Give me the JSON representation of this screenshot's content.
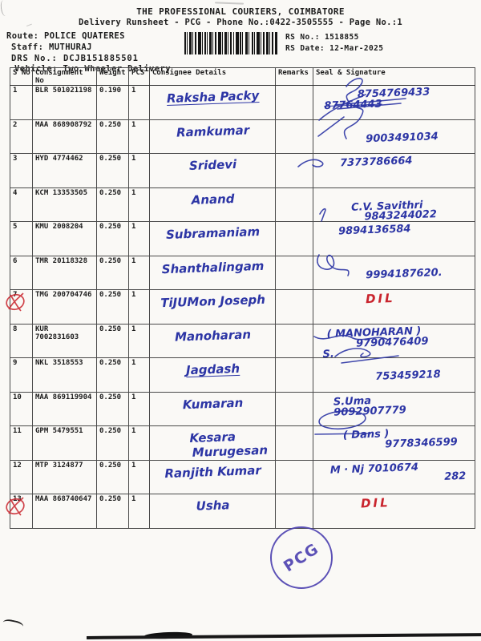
{
  "header": {
    "title": "THE PROFESSIONAL COURIERS, COIMBATORE",
    "subtitle": "Delivery Runsheet - PCG - Phone No.:0422-3505555 - Page No.:1",
    "route": "Route: POLICE QUATERES",
    "staff": "Staff: MUTHURAJ",
    "drs_no": "DRS No.: DCJB151885501",
    "vehicle": "Vehicle: Two Wheeler Delivery",
    "rs_no": "RS No.: 1518855",
    "rs_date": "RS Date: 12-Mar-2025",
    "barcode_icon": "barcode"
  },
  "ink_colors": {
    "blue": "#2c35a5",
    "red": "#c9242d",
    "stamp": "#4b3fb0"
  },
  "stamp": {
    "label": "PCG"
  },
  "table": {
    "columns": [
      "S No",
      "Consignment No",
      "Weight",
      "PCS",
      "Consignee Details",
      "Remarks",
      "Seal & Signature"
    ],
    "rows": [
      {
        "sno": "1",
        "consignment": "BLR 501021198",
        "weight": "0.190",
        "pcs": "1",
        "flagged": false,
        "consignee_lines": [
          {
            "text": "Raksha Packy",
            "underline": true
          }
        ],
        "sig_lines": [
          {
            "text": "8754769433",
            "indent": 52
          },
          {
            "text": "87764443",
            "strike": true,
            "indent": 10
          }
        ]
      },
      {
        "sno": "2",
        "consignment": "MAA 868908792",
        "weight": "0.250",
        "pcs": "1",
        "flagged": false,
        "consignee_lines": [
          {
            "text": "Ramkumar"
          }
        ],
        "sig_lines": [
          {
            "text": ""
          },
          {
            "text": "9003491034",
            "indent": 62
          }
        ]
      },
      {
        "sno": "3",
        "consignment": "HYD 4774462",
        "weight": "0.250",
        "pcs": "1",
        "flagged": false,
        "consignee_lines": [
          {
            "text": "Sridevi"
          }
        ],
        "sig_lines": [
          {
            "text": "7373786664",
            "indent": 30
          }
        ]
      },
      {
        "sno": "4",
        "consignment": "KCM 13353505",
        "weight": "0.250",
        "pcs": "1",
        "flagged": false,
        "consignee_lines": [
          {
            "text": "Anand"
          }
        ],
        "sig_lines": [
          {
            "text": ""
          },
          {
            "text": "C.V. Savithri",
            "indent": 44
          },
          {
            "text": "9843244022",
            "indent": 60
          }
        ]
      },
      {
        "sno": "5",
        "consignment": "KMU 2008204",
        "weight": "0.250",
        "pcs": "1",
        "flagged": false,
        "consignee_lines": [
          {
            "text": "Subramaniam"
          }
        ],
        "sig_lines": [
          {
            "text": "9894136584",
            "indent": 28
          }
        ]
      },
      {
        "sno": "6",
        "consignment": "TMR 20118328",
        "weight": "0.250",
        "pcs": "1",
        "flagged": false,
        "consignee_lines": [
          {
            "text": "Shanthalingam"
          }
        ],
        "sig_lines": [
          {
            "text": ""
          },
          {
            "text": "9994187620.",
            "indent": 62
          }
        ]
      },
      {
        "sno": "7",
        "consignment": "TMG 200704746",
        "weight": "0.250",
        "pcs": "1",
        "flagged": true,
        "consignee_lines": [
          {
            "text": "TiJUMon Joseph"
          }
        ],
        "sig_lines": [
          {
            "text": "DIL",
            "color": "red",
            "indent": 62
          }
        ]
      },
      {
        "sno": "8",
        "consignment": "KUR 7002831603",
        "weight": "0.250",
        "pcs": "1",
        "flagged": false,
        "consignee_lines": [
          {
            "text": "Manoharan"
          }
        ],
        "sig_lines": [
          {
            "text": "( MANOHARAN )",
            "indent": 14
          },
          {
            "text": "9790476409",
            "indent": 50
          },
          {
            "text": "S.",
            "indent": 8
          }
        ]
      },
      {
        "sno": "9",
        "consignment": "NKL 3518553",
        "weight": "0.250",
        "pcs": "1",
        "flagged": false,
        "consignee_lines": [
          {
            "text": "Jagdash",
            "underline": true
          }
        ],
        "sig_lines": [
          {
            "text": ""
          },
          {
            "text": "753459218",
            "indent": 74
          }
        ]
      },
      {
        "sno": "10",
        "consignment": "MAA 869119904",
        "weight": "0.250",
        "pcs": "1",
        "flagged": false,
        "consignee_lines": [
          {
            "text": "Kumaran"
          }
        ],
        "sig_lines": [
          {
            "text": "S.Uma",
            "indent": 22
          },
          {
            "text": "9092907779",
            "indent": 22
          }
        ]
      },
      {
        "sno": "11",
        "consignment": "GPM 5479551",
        "weight": "0.250",
        "pcs": "1",
        "flagged": false,
        "consignee_lines": [
          {
            "text": "Kesara"
          },
          {
            "text": "Murugesan",
            "indent": 42
          }
        ],
        "sig_lines": [
          {
            "text": "( Dans )",
            "indent": 34
          },
          {
            "text": "9778346599",
            "indent": 86
          }
        ]
      },
      {
        "sno": "12",
        "consignment": "MTP 3124877",
        "weight": "0.250",
        "pcs": "1",
        "flagged": false,
        "consignee_lines": [
          {
            "text": "Ranjith Kumar"
          }
        ],
        "sig_lines": [
          {
            "text": "M · Nj 7010674",
            "indent": 18
          },
          {
            "text": "282",
            "indent": 160
          }
        ]
      },
      {
        "sno": "13",
        "consignment": "MAA 868740647",
        "weight": "0.250",
        "pcs": "1",
        "flagged": true,
        "consignee_lines": [
          {
            "text": "Usha"
          }
        ],
        "sig_lines": [
          {
            "text": "DIL",
            "color": "red",
            "indent": 56
          }
        ]
      }
    ]
  }
}
